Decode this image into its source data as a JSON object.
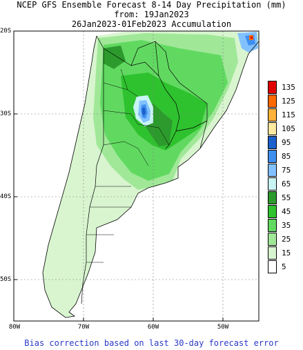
{
  "header": {
    "line1": "NCEP GFS Ensemble Forecast 8-14 Day Precipitation (mm)",
    "line2": "from: 19Jan2023",
    "line3": "26Jan2023-01Feb2023 Accumulation"
  },
  "axes": {
    "lat_labels": [
      "20S",
      "30S",
      "40S",
      "50S"
    ],
    "lon_labels": [
      "80W",
      "70W",
      "60W",
      "50W"
    ]
  },
  "legend": {
    "units": "mm",
    "items": [
      {
        "label": "135",
        "color": "#e00000"
      },
      {
        "label": "125",
        "color": "#ff6a00"
      },
      {
        "label": "115",
        "color": "#ffb33a"
      },
      {
        "label": "105",
        "color": "#ffe9a0"
      },
      {
        "label": "95",
        "color": "#1a5fcc"
      },
      {
        "label": "85",
        "color": "#3f8ff0"
      },
      {
        "label": "75",
        "color": "#82c1ff"
      },
      {
        "label": "65",
        "color": "#c9f4f4"
      },
      {
        "label": "55",
        "color": "#2d9a2d"
      },
      {
        "label": "45",
        "color": "#2fc22f"
      },
      {
        "label": "35",
        "color": "#61d961"
      },
      {
        "label": "25",
        "color": "#a0e898"
      },
      {
        "label": "15",
        "color": "#d8f5cf"
      },
      {
        "label": "5",
        "color": "#ffffff"
      }
    ]
  },
  "footer": {
    "note": "Bias correction based on last 30-day forecast error"
  }
}
